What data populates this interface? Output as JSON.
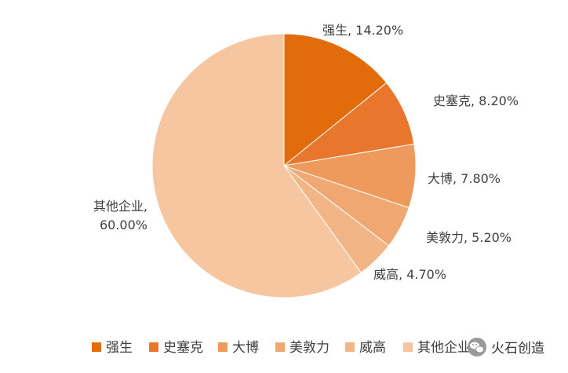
{
  "chart_data": {
    "type": "pie",
    "categories": [
      "强生",
      "史塞克",
      "大博",
      "美敦力",
      "威高",
      "其他企业"
    ],
    "values": [
      14.2,
      8.2,
      7.8,
      5.2,
      4.7,
      60.0
    ],
    "value_labels": [
      "14.20%",
      "8.20%",
      "7.80%",
      "5.20%",
      "4.70%",
      "60.00%"
    ],
    "title": "",
    "legend_position": "bottom",
    "colors": [
      "#E36C0A",
      "#E8762D",
      "#EE9A5C",
      "#F0A872",
      "#F2B585",
      "#F5C69F"
    ]
  },
  "watermark": {
    "text": "火石创造",
    "icon": "wechat-icon"
  }
}
